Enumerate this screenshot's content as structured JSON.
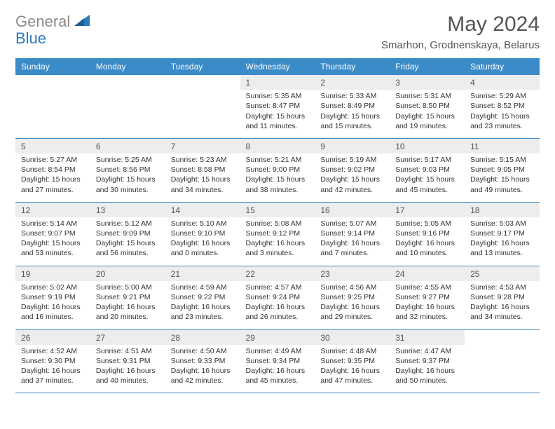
{
  "logo": {
    "gray": "General",
    "blue": "Blue"
  },
  "title": "May 2024",
  "location": "Smarhon, Grodnenskaya, Belarus",
  "colors": {
    "header_bg": "#3b8bc9",
    "header_text": "#ffffff",
    "daynum_bg": "#ededed",
    "body_text": "#333333",
    "title_text": "#555555",
    "logo_gray": "#8a8a8a",
    "logo_blue": "#2b7bbf",
    "border": "#3b8bc9"
  },
  "day_headers": [
    "Sunday",
    "Monday",
    "Tuesday",
    "Wednesday",
    "Thursday",
    "Friday",
    "Saturday"
  ],
  "weeks": [
    {
      "nums": [
        "",
        "",
        "",
        "1",
        "2",
        "3",
        "4"
      ],
      "details": [
        "",
        "",
        "",
        "Sunrise: 5:35 AM\nSunset: 8:47 PM\nDaylight: 15 hours\nand 11 minutes.",
        "Sunrise: 5:33 AM\nSunset: 8:49 PM\nDaylight: 15 hours\nand 15 minutes.",
        "Sunrise: 5:31 AM\nSunset: 8:50 PM\nDaylight: 15 hours\nand 19 minutes.",
        "Sunrise: 5:29 AM\nSunset: 8:52 PM\nDaylight: 15 hours\nand 23 minutes."
      ]
    },
    {
      "nums": [
        "5",
        "6",
        "7",
        "8",
        "9",
        "10",
        "11"
      ],
      "details": [
        "Sunrise: 5:27 AM\nSunset: 8:54 PM\nDaylight: 15 hours\nand 27 minutes.",
        "Sunrise: 5:25 AM\nSunset: 8:56 PM\nDaylight: 15 hours\nand 30 minutes.",
        "Sunrise: 5:23 AM\nSunset: 8:58 PM\nDaylight: 15 hours\nand 34 minutes.",
        "Sunrise: 5:21 AM\nSunset: 9:00 PM\nDaylight: 15 hours\nand 38 minutes.",
        "Sunrise: 5:19 AM\nSunset: 9:02 PM\nDaylight: 15 hours\nand 42 minutes.",
        "Sunrise: 5:17 AM\nSunset: 9:03 PM\nDaylight: 15 hours\nand 45 minutes.",
        "Sunrise: 5:15 AM\nSunset: 9:05 PM\nDaylight: 15 hours\nand 49 minutes."
      ]
    },
    {
      "nums": [
        "12",
        "13",
        "14",
        "15",
        "16",
        "17",
        "18"
      ],
      "details": [
        "Sunrise: 5:14 AM\nSunset: 9:07 PM\nDaylight: 15 hours\nand 53 minutes.",
        "Sunrise: 5:12 AM\nSunset: 9:09 PM\nDaylight: 15 hours\nand 56 minutes.",
        "Sunrise: 5:10 AM\nSunset: 9:10 PM\nDaylight: 16 hours\nand 0 minutes.",
        "Sunrise: 5:08 AM\nSunset: 9:12 PM\nDaylight: 16 hours\nand 3 minutes.",
        "Sunrise: 5:07 AM\nSunset: 9:14 PM\nDaylight: 16 hours\nand 7 minutes.",
        "Sunrise: 5:05 AM\nSunset: 9:16 PM\nDaylight: 16 hours\nand 10 minutes.",
        "Sunrise: 5:03 AM\nSunset: 9:17 PM\nDaylight: 16 hours\nand 13 minutes."
      ]
    },
    {
      "nums": [
        "19",
        "20",
        "21",
        "22",
        "23",
        "24",
        "25"
      ],
      "details": [
        "Sunrise: 5:02 AM\nSunset: 9:19 PM\nDaylight: 16 hours\nand 16 minutes.",
        "Sunrise: 5:00 AM\nSunset: 9:21 PM\nDaylight: 16 hours\nand 20 minutes.",
        "Sunrise: 4:59 AM\nSunset: 9:22 PM\nDaylight: 16 hours\nand 23 minutes.",
        "Sunrise: 4:57 AM\nSunset: 9:24 PM\nDaylight: 16 hours\nand 26 minutes.",
        "Sunrise: 4:56 AM\nSunset: 9:25 PM\nDaylight: 16 hours\nand 29 minutes.",
        "Sunrise: 4:55 AM\nSunset: 9:27 PM\nDaylight: 16 hours\nand 32 minutes.",
        "Sunrise: 4:53 AM\nSunset: 9:28 PM\nDaylight: 16 hours\nand 34 minutes."
      ]
    },
    {
      "nums": [
        "26",
        "27",
        "28",
        "29",
        "30",
        "31",
        ""
      ],
      "details": [
        "Sunrise: 4:52 AM\nSunset: 9:30 PM\nDaylight: 16 hours\nand 37 minutes.",
        "Sunrise: 4:51 AM\nSunset: 9:31 PM\nDaylight: 16 hours\nand 40 minutes.",
        "Sunrise: 4:50 AM\nSunset: 9:33 PM\nDaylight: 16 hours\nand 42 minutes.",
        "Sunrise: 4:49 AM\nSunset: 9:34 PM\nDaylight: 16 hours\nand 45 minutes.",
        "Sunrise: 4:48 AM\nSunset: 9:35 PM\nDaylight: 16 hours\nand 47 minutes.",
        "Sunrise: 4:47 AM\nSunset: 9:37 PM\nDaylight: 16 hours\nand 50 minutes.",
        ""
      ]
    }
  ]
}
